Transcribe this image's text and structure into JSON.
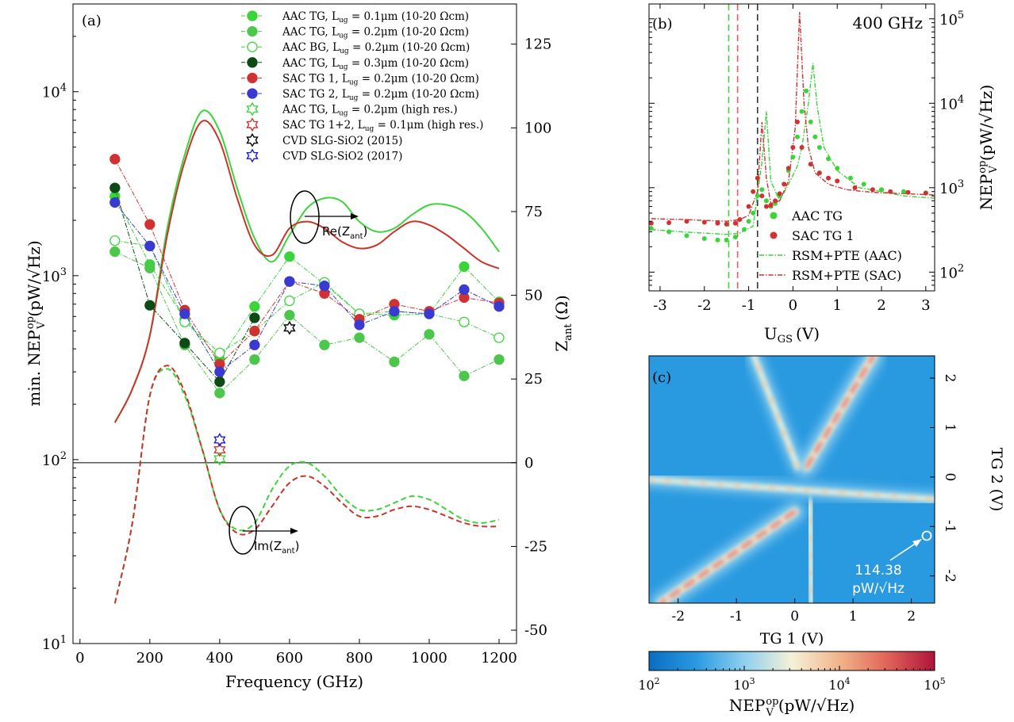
{
  "chart_data": [
    {
      "id": "a",
      "panel_label": "(a)",
      "type": "scatter",
      "xlabel": "Frequency (GHz)",
      "ylabel_left": "min. NEP",
      "ylabel_left_sup": "op",
      "ylabel_left_sub": "V",
      "ylabel_left_unit": "(pW/√Hz)",
      "ylabel_right": "Z",
      "ylabel_right_sub": "ant",
      "ylabel_right_unit": "(Ω)",
      "xlim": [
        -20,
        1250
      ],
      "ylim_left_log": [
        10,
        30000
      ],
      "ylim_right": [
        -54,
        137
      ],
      "xticks": [
        "0",
        "200",
        "400",
        "600",
        "800",
        "1000",
        "1200"
      ],
      "xtick_values": [
        0,
        200,
        400,
        600,
        800,
        1000,
        1200
      ],
      "yticks_left": [
        "10",
        "10",
        "10",
        "10"
      ],
      "yticks_left_exp": [
        "1",
        "2",
        "3",
        "4"
      ],
      "ytick_left_values": [
        10,
        100,
        1000,
        10000
      ],
      "yticks_right": [
        "-50",
        "-25",
        "0",
        "25",
        "50",
        "75",
        "100",
        "125"
      ],
      "ytick_right_values": [
        -50,
        -25,
        0,
        25,
        50,
        75,
        100,
        125
      ],
      "annotations": [
        {
          "text": "Re(Z",
          "sub": "ant",
          "close": ")"
        },
        {
          "text": "Im(Z",
          "sub": "ant",
          "close": ")"
        }
      ],
      "series": [
        {
          "name": "AAC TG, L",
          "sub": "ug",
          "rest": " = 0.1μm (10-20 Ωcm)",
          "color": "#3bd43b",
          "filled": true,
          "marker": "circle",
          "x": [
            100,
            200,
            300,
            400,
            500,
            600,
            700,
            800,
            900,
            1000,
            1100,
            1200
          ],
          "y": [
            2700,
            1150,
            580,
            350,
            680,
            1270,
            900,
            620,
            610,
            620,
            1120,
            720
          ]
        },
        {
          "name": "AAC TG, L",
          "sub": "ug",
          "rest": " = 0.2μm (10-20 Ωcm)",
          "color": "#4cc74c",
          "filled": true,
          "marker": "circle",
          "x": [
            100,
            200,
            300,
            400,
            500,
            600,
            700,
            800,
            900,
            1000,
            1100,
            1200
          ],
          "y": [
            1350,
            1100,
            420,
            230,
            350,
            610,
            420,
            460,
            340,
            480,
            285,
            350
          ]
        },
        {
          "name": "AAC BG, L",
          "sub": "ug",
          "rest": " = 0.2μm (10-20 Ωcm)",
          "color": "#3bd43b",
          "filled": false,
          "marker": "circle",
          "x": [
            100,
            200,
            300,
            400,
            500,
            600,
            700,
            800,
            900,
            1000,
            1100,
            1200
          ],
          "y": [
            1550,
            1450,
            560,
            380,
            500,
            730,
            920,
            620,
            640,
            620,
            560,
            460
          ]
        },
        {
          "name": "AAC TG, L",
          "sub": "ug",
          "rest": " = 0.3μm (10-20 Ωcm)",
          "color": "#0b4a14",
          "filled": true,
          "marker": "circle",
          "x": [
            100,
            200,
            300,
            400,
            500
          ],
          "y": [
            3000,
            690,
            430,
            265,
            590
          ]
        },
        {
          "name": "SAC TG 1, L",
          "sub": "ug",
          "rest": " = 0.2μm (10-20 Ωcm)",
          "color": "#d03232",
          "filled": true,
          "marker": "circle",
          "x": [
            100,
            200,
            300,
            400,
            500,
            600,
            700,
            800,
            900,
            1000,
            1100,
            1200
          ],
          "y": [
            4300,
            1900,
            650,
            330,
            500,
            930,
            800,
            580,
            700,
            640,
            760,
            710
          ]
        },
        {
          "name": "SAC TG 2, L",
          "sub": "ug",
          "rest": " = 0.2μm (10-20 Ωcm)",
          "color": "#3a3ad0",
          "filled": true,
          "marker": "circle",
          "x": [
            100,
            200,
            300,
            400,
            500,
            600,
            700,
            800,
            900,
            1000,
            1100,
            1200
          ],
          "y": [
            2500,
            1450,
            620,
            300,
            420,
            930,
            880,
            540,
            640,
            620,
            840,
            680
          ]
        },
        {
          "name": "AAC TG, L",
          "sub": "ug",
          "rest": " = 0.2μm (high res.)",
          "color": "#3bd43b",
          "filled": false,
          "marker": "star",
          "x": [
            400
          ],
          "y": [
            101
          ]
        },
        {
          "name": "SAC TG 1+2, L",
          "sub": "ug",
          "rest": " = 0.1μm (high res.)",
          "color": "#d03232",
          "filled": false,
          "marker": "star",
          "x": [
            400
          ],
          "y": [
            113
          ]
        },
        {
          "name": "CVD SLG-SiO2 (2015)",
          "sub": "",
          "rest": "",
          "color": "#000000",
          "filled": false,
          "marker": "star",
          "x": [
            600
          ],
          "y": [
            520
          ]
        },
        {
          "name": "CVD SLG-SiO2 (2017)",
          "sub": "",
          "rest": "",
          "color": "#1a1ad8",
          "filled": false,
          "marker": "star",
          "x": [
            400
          ],
          "y": [
            128
          ]
        }
      ],
      "impedance_curves": [
        {
          "part": "Re",
          "color": "#3bd43b",
          "dash": false,
          "x": [
            100,
            150,
            200,
            250,
            300,
            350,
            400,
            450,
            500,
            550,
            600,
            650,
            700,
            750,
            800,
            850,
            900,
            950,
            1000,
            1050,
            1100,
            1150,
            1200
          ],
          "y": [
            12,
            22,
            38,
            70,
            92,
            105,
            99,
            82,
            67,
            60,
            68,
            76,
            79,
            78,
            72,
            69,
            70,
            74,
            77,
            77,
            75,
            70,
            63
          ]
        },
        {
          "part": "Re",
          "color": "#c8352a",
          "dash": false,
          "x": [
            100,
            150,
            200,
            250,
            300,
            350,
            400,
            450,
            500,
            550,
            600,
            650,
            700,
            750,
            800,
            850,
            900,
            950,
            1000,
            1050,
            1100,
            1150,
            1200
          ],
          "y": [
            12,
            22,
            38,
            68,
            90,
            102,
            96,
            79,
            65,
            62,
            70,
            72,
            70,
            66,
            64,
            65,
            69,
            72,
            71,
            68,
            64,
            60,
            58
          ]
        },
        {
          "part": "Im",
          "color": "#3bd43b",
          "dash": true,
          "x": [
            100,
            150,
            200,
            250,
            300,
            350,
            400,
            450,
            500,
            550,
            600,
            650,
            700,
            750,
            800,
            850,
            900,
            950,
            1000,
            1050,
            1100,
            1150,
            1200
          ],
          "y": [
            -42,
            -18,
            20,
            28,
            20,
            4,
            -14,
            -20,
            -18,
            -8,
            -1,
            0,
            -4,
            -10,
            -14,
            -14,
            -12,
            -10,
            -11,
            -14,
            -17,
            -18,
            -17
          ]
        },
        {
          "part": "Im",
          "color": "#c8352a",
          "dash": true,
          "x": [
            100,
            150,
            200,
            250,
            300,
            350,
            400,
            450,
            500,
            550,
            600,
            650,
            700,
            750,
            800,
            850,
            900,
            950,
            1000,
            1050,
            1100,
            1150,
            1200
          ],
          "y": [
            -42,
            -18,
            20,
            29,
            21,
            4,
            -14,
            -21,
            -20,
            -13,
            -6,
            -4,
            -7,
            -12,
            -16,
            -16,
            -14,
            -13,
            -14,
            -16,
            -18,
            -19,
            -19
          ]
        }
      ],
      "zero_line": 0
    },
    {
      "id": "b",
      "panel_label": "(b)",
      "type": "line",
      "title": "400 GHz",
      "xlabel": "U",
      "xlabel_sub": "GS",
      "xlabel_unit": "(V)",
      "ylabel": "NEP",
      "ylabel_sup": "op",
      "ylabel_sub": "V",
      "ylabel_unit": "(pW/√Hz)",
      "xlim": [
        -3.25,
        3.2
      ],
      "ylim_log": [
        60,
        150000
      ],
      "xticks": [
        "-3",
        "-2",
        "-1",
        "0",
        "1",
        "2",
        "3"
      ],
      "xtick_values": [
        -3,
        -2,
        -1,
        0,
        1,
        2,
        3
      ],
      "yticks": [
        "10",
        "10",
        "10",
        "10"
      ],
      "yticks_exp": [
        "2",
        "3",
        "4",
        "5"
      ],
      "ytick_values": [
        100,
        1000,
        10000,
        100000
      ],
      "vlines": [
        {
          "x": -1.45,
          "color": "#3bd43b"
        },
        {
          "x": -1.25,
          "color": "#e06060"
        },
        {
          "x": -0.8,
          "color": "#333333"
        }
      ],
      "series": [
        {
          "name": "AAC TG",
          "color": "#3bd43b",
          "style": "dots",
          "x": [
            -3.2,
            -2.8,
            -2.4,
            -2.0,
            -1.7,
            -1.5,
            -1.3,
            -1.1,
            -1.0,
            -0.9,
            -0.8,
            -0.7,
            -0.6,
            -0.5,
            -0.4,
            -0.3,
            -0.2,
            -0.1,
            0.0,
            0.1,
            0.2,
            0.3,
            0.4,
            0.5,
            0.6,
            0.8,
            1.0,
            1.3,
            1.6,
            2.0,
            2.5,
            3.0
          ],
          "y": [
            330,
            300,
            270,
            250,
            240,
            240,
            260,
            320,
            400,
            500,
            800,
            950,
            700,
            600,
            650,
            800,
            1100,
            1600,
            2300,
            4000,
            8000,
            14000,
            6000,
            4000,
            3000,
            2200,
            1700,
            1300,
            1100,
            950,
            900,
            870
          ]
        },
        {
          "name": "SAC TG 1",
          "color": "#d03232",
          "style": "dots",
          "x": [
            -3.2,
            -2.8,
            -2.4,
            -2.0,
            -1.7,
            -1.5,
            -1.3,
            -1.2,
            -1.0,
            -0.9,
            -0.8,
            -0.7,
            -0.6,
            -0.5,
            -0.4,
            -0.3,
            -0.2,
            -0.1,
            0.0,
            0.1,
            0.2,
            0.4,
            0.6,
            0.8,
            1.0,
            1.4,
            1.8,
            2.2,
            2.6,
            3.0
          ],
          "y": [
            380,
            385,
            400,
            390,
            380,
            370,
            380,
            420,
            600,
            900,
            1300,
            800,
            600,
            620,
            700,
            850,
            1100,
            1700,
            3000,
            6000,
            3000,
            1900,
            1500,
            1300,
            1200,
            1000,
            950,
            900,
            880,
            860
          ]
        },
        {
          "name": "RSM+PTE (AAC)",
          "color": "#3bd43b",
          "style": "dashdot",
          "x": [
            -3.2,
            -2.5,
            -2.0,
            -1.5,
            -1.2,
            -0.9,
            -0.7,
            -0.6,
            -0.5,
            -0.3,
            -0.1,
            0.1,
            0.2,
            0.35,
            0.45,
            0.55,
            0.7,
            1.0,
            1.5,
            2.0,
            2.5,
            3.2
          ],
          "y": [
            320,
            300,
            290,
            280,
            290,
            350,
            2000,
            8000,
            1200,
            700,
            1100,
            1800,
            3000,
            10000,
            30000,
            9000,
            3000,
            1600,
            1000,
            900,
            800,
            750
          ]
        },
        {
          "name": "RSM+PTE (SAC)",
          "color": "#d03232",
          "style": "dashdot",
          "x": [
            -3.2,
            -2.5,
            -2.0,
            -1.5,
            -1.2,
            -1.0,
            -0.8,
            -0.7,
            -0.6,
            -0.5,
            -0.3,
            -0.1,
            0.05,
            0.15,
            0.25,
            0.35,
            0.5,
            0.8,
            1.2,
            1.6,
            2.0,
            2.5,
            3.2
          ],
          "y": [
            430,
            420,
            410,
            400,
            420,
            470,
            900,
            6000,
            1300,
            650,
            700,
            1200,
            5000,
            120000,
            10000,
            3000,
            1500,
            1100,
            950,
            900,
            870,
            850,
            820
          ]
        }
      ]
    },
    {
      "id": "c",
      "panel_label": "(c)",
      "type": "heatmap",
      "xlabel": "TG 1 (V)",
      "ylabel": "TG 2 (V)",
      "xlim": [
        -2.5,
        2.4
      ],
      "ylim": [
        -2.55,
        2.45
      ],
      "xticks": [
        "-2",
        "-1",
        "0",
        "1",
        "2"
      ],
      "xtick_values": [
        -2,
        -1,
        0,
        1,
        2
      ],
      "yticks": [
        "-2",
        "-1",
        "0",
        "1",
        "2"
      ],
      "ytick_values": [
        -2,
        -1,
        0,
        1,
        2
      ],
      "colorbar": {
        "label": "NEP",
        "label_sup": "op",
        "label_sub": "V",
        "label_unit": "(pW/√Hz)",
        "range_log": [
          100,
          100000
        ],
        "ticks": [
          "10",
          "10",
          "10",
          "10"
        ],
        "ticks_exp": [
          "2",
          "3",
          "4",
          "5"
        ],
        "colors": [
          "#0a6dc0",
          "#2a9ae0",
          "#8fd0ef",
          "#f4f1d8",
          "#f2b48a",
          "#e06458",
          "#b0143a"
        ]
      },
      "marker_annotation": {
        "line1": "114.38",
        "line2": "pW/√Hz",
        "x": 2.35,
        "y": -1.1
      },
      "structures": [
        {
          "kind": "line",
          "from": [
            0.2,
            0.2
          ],
          "to": [
            1.35,
            2.45
          ],
          "intensity": "high"
        },
        {
          "kind": "line",
          "from": [
            0.0,
            -0.7
          ],
          "to": [
            -2.3,
            -2.55
          ],
          "intensity": "high"
        },
        {
          "kind": "line",
          "from": [
            0.05,
            0.2
          ],
          "to": [
            -0.7,
            2.45
          ],
          "intensity": "low"
        },
        {
          "kind": "line",
          "from": [
            0.25,
            -0.5
          ],
          "to": [
            0.3,
            -2.55
          ],
          "intensity": "low"
        },
        {
          "kind": "line",
          "from": [
            -2.5,
            -0.05
          ],
          "to": [
            2.4,
            -0.45
          ],
          "intensity": "low"
        }
      ]
    }
  ]
}
